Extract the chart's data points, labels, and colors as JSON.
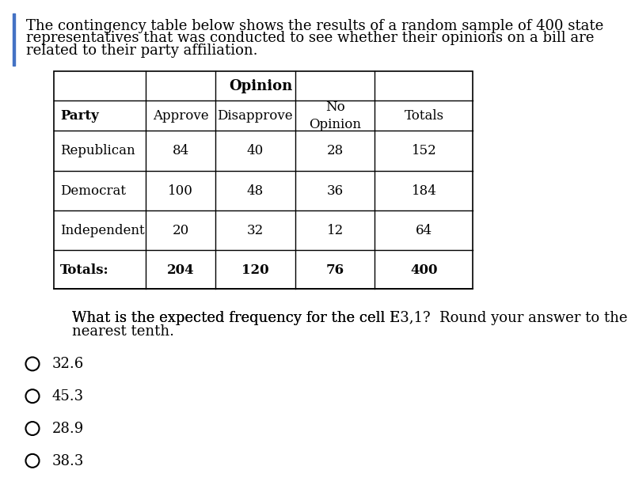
{
  "para_lines": [
    "The contingency table below shows the results of a random sample of 400 state",
    "representatives that was conducted to see whether their opinions on a bill are",
    "related to their party affiliation."
  ],
  "opinion_header": "Opinion",
  "col_headers": [
    "Party",
    "Approve",
    "Disapprove",
    "No\nOpinion",
    "Totals"
  ],
  "col_headers_bold": [
    true,
    false,
    false,
    false,
    false
  ],
  "rows": [
    [
      "Republican",
      "84",
      "40",
      "28",
      "152"
    ],
    [
      "Democrat",
      "100",
      "48",
      "36",
      "184"
    ],
    [
      "Independent",
      "20",
      "32",
      "12",
      "64"
    ],
    [
      "Totals:",
      "204",
      "120",
      "76",
      "400"
    ]
  ],
  "rows_bold_last": true,
  "question_lines": [
    "What is the expected frequency for the cell E3,1?  Round your answer to the",
    "nearest tenth."
  ],
  "question_subscript": "3,1",
  "choices": [
    "32.6",
    "45.3",
    "28.9",
    "38.3"
  ],
  "bg_color": "#ffffff",
  "text_color": "#000000",
  "left_bar_color": "#4472c4",
  "font_size_para": 13,
  "font_size_table": 12,
  "font_size_question": 13,
  "font_size_choices": 13
}
